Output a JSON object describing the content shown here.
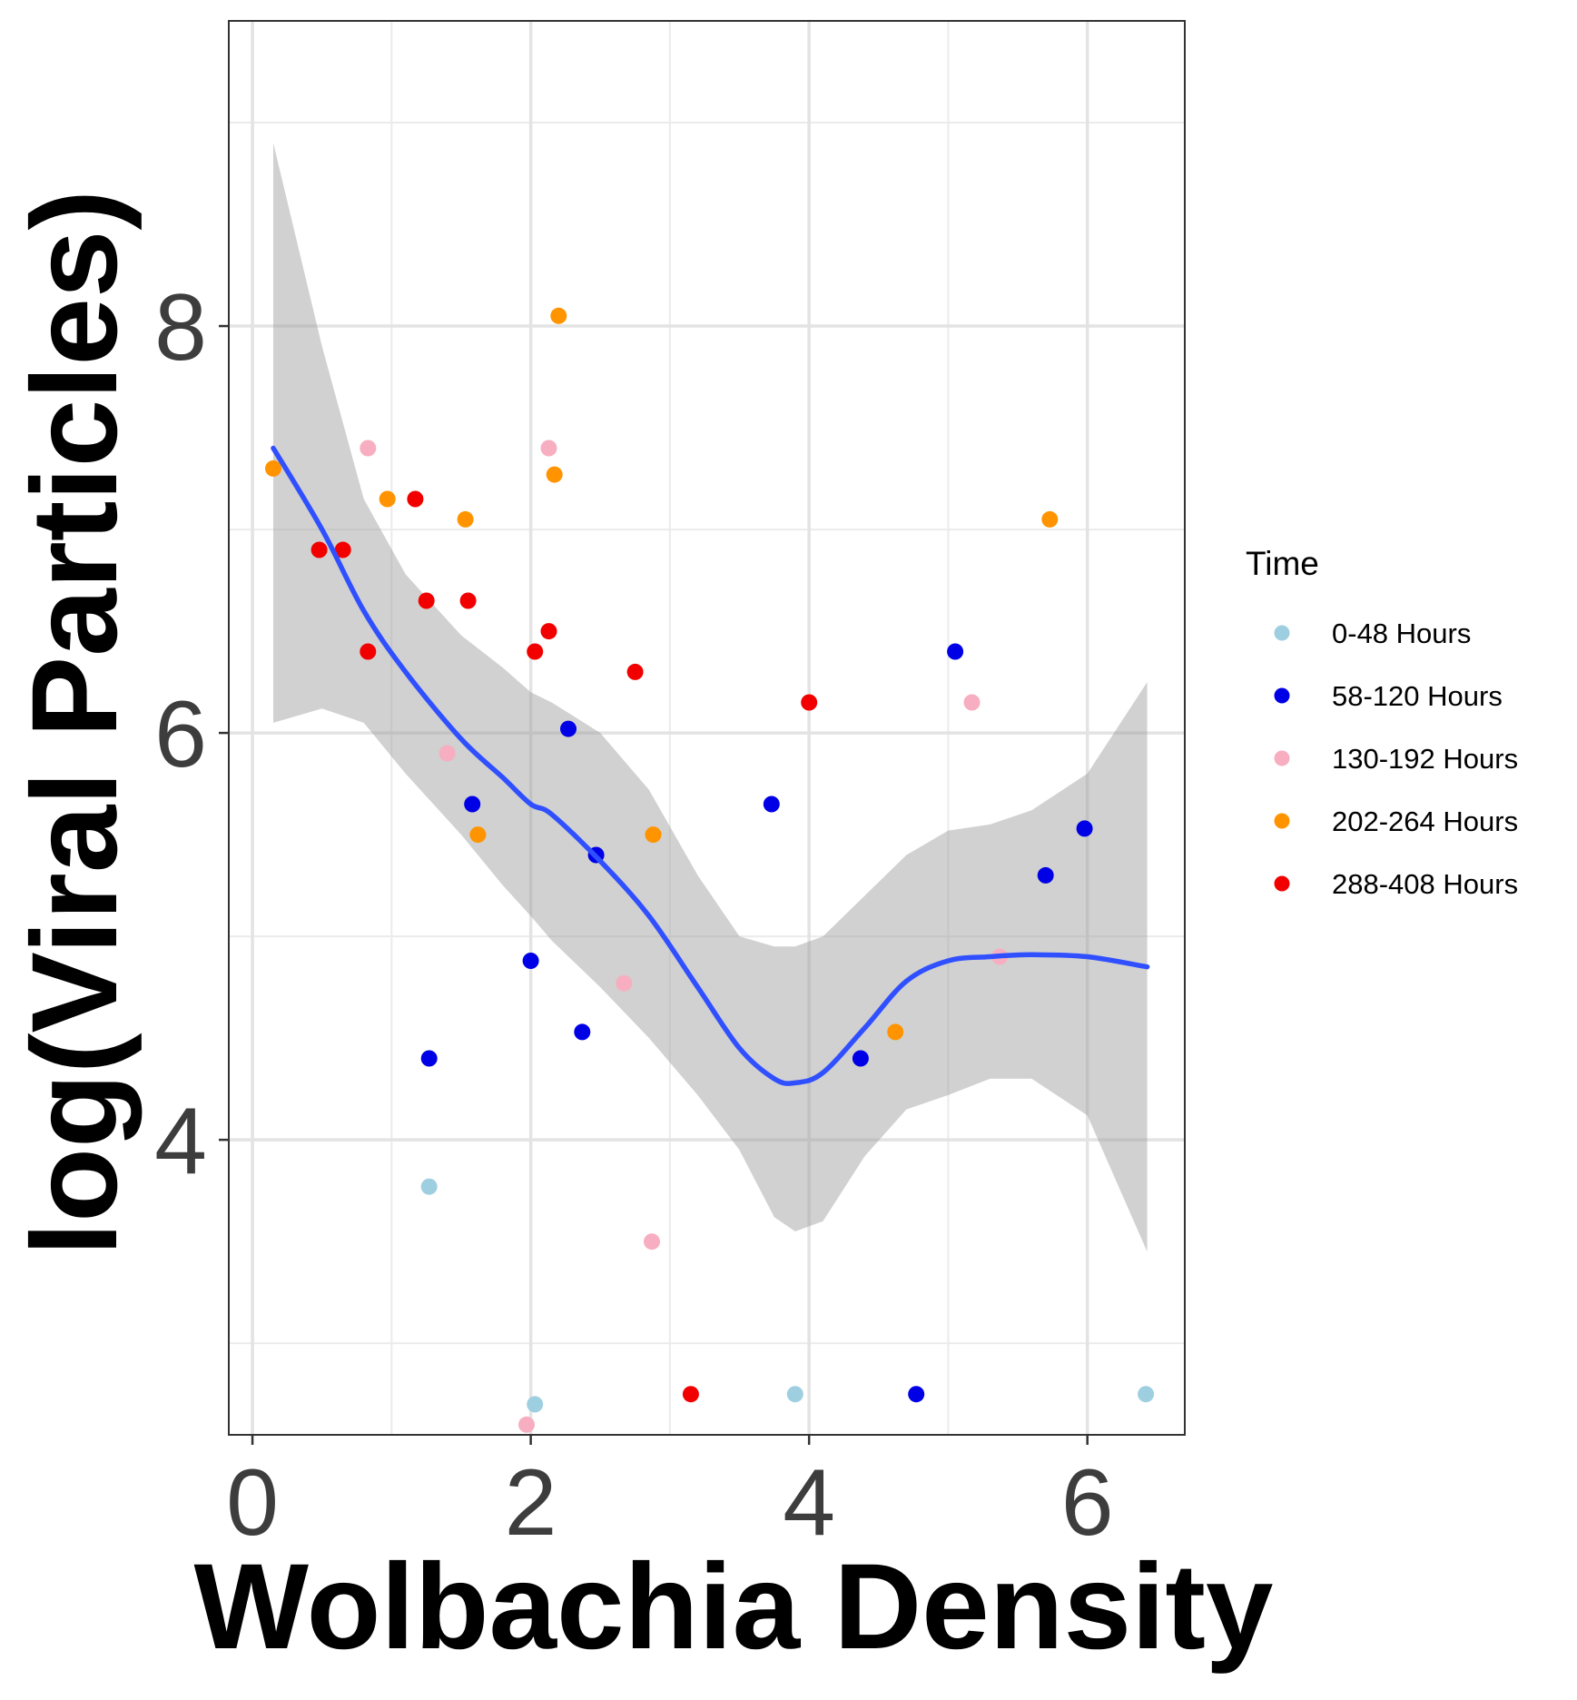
{
  "chart_data": {
    "type": "scatter",
    "xlabel": "Wolbachia Density",
    "ylabel": "log(Viral Particles)",
    "xlim": [
      -0.17,
      6.7
    ],
    "ylim": [
      2.55,
      9.5
    ],
    "x_ticks": [
      0,
      2,
      4,
      6
    ],
    "x_tick_labels": [
      "0",
      "2",
      "4",
      "6"
    ],
    "y_ticks": [
      4,
      6,
      8
    ],
    "y_tick_labels": [
      "4",
      "6",
      "8"
    ],
    "grid": true,
    "legend": {
      "title": "Time",
      "position": "right",
      "entries": [
        {
          "label": "0-48 Hours",
          "color": "#9ecfe0"
        },
        {
          "label": "58-120 Hours",
          "color": "#0000e6"
        },
        {
          "label": "130-192 Hours",
          "color": "#f7aec0"
        },
        {
          "label": "202-264 Hours",
          "color": "#ff9400"
        },
        {
          "label": "288-408 Hours",
          "color": "#f20000"
        }
      ]
    },
    "series": [
      {
        "name": "0-48 Hours",
        "color": "#9ecfe0",
        "points": [
          [
            1.27,
            3.77
          ],
          [
            2.03,
            2.7
          ],
          [
            3.9,
            2.75
          ],
          [
            6.42,
            2.75
          ]
        ]
      },
      {
        "name": "58-120 Hours",
        "color": "#0000e6",
        "points": [
          [
            1.27,
            4.4
          ],
          [
            1.58,
            5.65
          ],
          [
            2.0,
            4.88
          ],
          [
            2.27,
            6.02
          ],
          [
            2.37,
            4.53
          ],
          [
            2.47,
            5.4
          ],
          [
            3.73,
            5.65
          ],
          [
            4.37,
            4.4
          ],
          [
            4.77,
            2.75
          ],
          [
            5.05,
            6.4
          ],
          [
            5.7,
            5.3
          ],
          [
            5.98,
            5.53
          ]
        ]
      },
      {
        "name": "130-192 Hours",
        "color": "#f7aec0",
        "points": [
          [
            0.83,
            7.4
          ],
          [
            1.4,
            5.9
          ],
          [
            1.97,
            2.6
          ],
          [
            2.13,
            7.4
          ],
          [
            2.67,
            4.77
          ],
          [
            2.87,
            3.5
          ],
          [
            5.17,
            6.15
          ],
          [
            5.37,
            4.9
          ]
        ]
      },
      {
        "name": "202-264 Hours",
        "color": "#ff9400",
        "points": [
          [
            0.15,
            7.3
          ],
          [
            0.97,
            7.15
          ],
          [
            1.53,
            7.05
          ],
          [
            1.62,
            5.5
          ],
          [
            2.17,
            7.27
          ],
          [
            2.2,
            8.05
          ],
          [
            2.88,
            5.5
          ],
          [
            4.62,
            4.53
          ],
          [
            5.73,
            7.05
          ]
        ]
      },
      {
        "name": "288-408 Hours",
        "color": "#f20000",
        "points": [
          [
            0.48,
            6.9
          ],
          [
            0.65,
            6.9
          ],
          [
            0.83,
            6.4
          ],
          [
            1.17,
            7.15
          ],
          [
            1.25,
            6.65
          ],
          [
            1.55,
            6.65
          ],
          [
            2.03,
            6.4
          ],
          [
            2.13,
            6.5
          ],
          [
            2.75,
            6.3
          ],
          [
            3.15,
            2.75
          ],
          [
            4.0,
            6.15
          ]
        ]
      }
    ],
    "smooth": {
      "color": "#3050ff",
      "x": [
        0.15,
        0.5,
        0.8,
        1.1,
        1.5,
        1.8,
        2.0,
        2.15,
        2.5,
        2.85,
        3.2,
        3.5,
        3.75,
        3.9,
        4.1,
        4.4,
        4.7,
        5.0,
        5.3,
        5.6,
        6.0,
        6.43
      ],
      "y": [
        7.4,
        7.0,
        6.6,
        6.3,
        5.97,
        5.78,
        5.65,
        5.6,
        5.37,
        5.1,
        4.75,
        4.45,
        4.3,
        4.28,
        4.33,
        4.55,
        4.78,
        4.88,
        4.9,
        4.91,
        4.9,
        4.85
      ],
      "lower": [
        6.05,
        6.12,
        6.05,
        5.8,
        5.5,
        5.25,
        5.1,
        4.98,
        4.75,
        4.5,
        4.22,
        3.95,
        3.62,
        3.55,
        3.6,
        3.92,
        4.15,
        4.22,
        4.3,
        4.3,
        4.12,
        3.45
      ],
      "upper": [
        8.9,
        7.9,
        7.15,
        6.78,
        6.48,
        6.32,
        6.2,
        6.15,
        6.0,
        5.72,
        5.3,
        5.0,
        4.95,
        4.95,
        5.0,
        5.2,
        5.4,
        5.52,
        5.55,
        5.62,
        5.8,
        6.25
      ]
    }
  }
}
